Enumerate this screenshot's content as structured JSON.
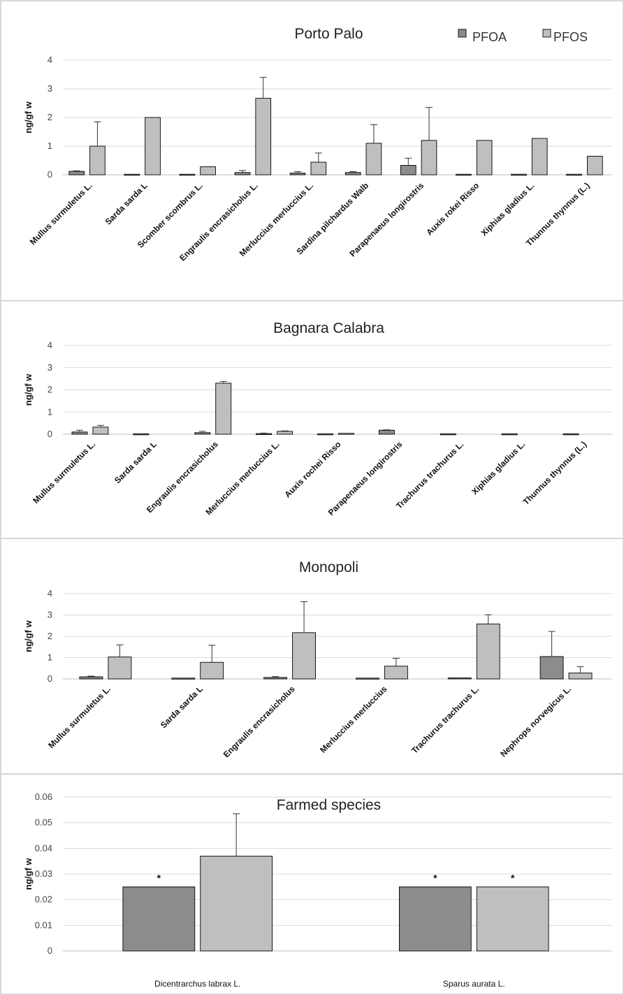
{
  "legend": {
    "pfoa_label": "PFOA",
    "pfos_label": "PFOS"
  },
  "colors": {
    "pfoa": "#8c8c8c",
    "pfos": "#bfbfbf",
    "grid": "#d9d9d9",
    "border": "#bfbfbf",
    "bar_stroke": "#000000"
  },
  "chart_data": [
    {
      "type": "bar",
      "title": "Porto Palo",
      "ylabel": "ng/gf w",
      "ylim": [
        0,
        4
      ],
      "yticks": [
        "0",
        "1",
        "2",
        "3",
        "4"
      ],
      "categories": [
        "Mullus surmuletus L.",
        "Sarda sarda L",
        "Scomber scombrus L.",
        "Engraulis encrasicholus L.",
        "Merluccius merluccius L.",
        "Sardina pilchardus Walb",
        "Parapenaeus longirostris",
        "Auxis rokei Risso",
        "Xiphias gladius L.",
        "Thunnus thynnus (L.)"
      ],
      "series": [
        {
          "name": "PFOA",
          "values": [
            0.12,
            0.02,
            0.02,
            0.08,
            0.06,
            0.08,
            0.33,
            0.02,
            0.02,
            0.02
          ],
          "errors": [
            0.02,
            0,
            0,
            0.07,
            0.05,
            0.03,
            0.25,
            0,
            0,
            0
          ]
        },
        {
          "name": "PFOS",
          "values": [
            1.0,
            2.0,
            0.28,
            2.67,
            0.44,
            1.1,
            1.2,
            1.2,
            1.27,
            0.65
          ],
          "errors": [
            0.85,
            0,
            0,
            0.73,
            0.32,
            0.65,
            1.15,
            0,
            0,
            0
          ]
        }
      ],
      "grid": true
    },
    {
      "type": "bar",
      "title": "Bagnara Calabra",
      "ylabel": "ng/gf w",
      "ylim": [
        0,
        4
      ],
      "yticks": [
        "0",
        "1",
        "2",
        "3",
        "4"
      ],
      "categories": [
        "Mullus surmuletus L.",
        "Sarda sarda L",
        "Engraulis encrasicholus",
        "Merluccius merluccius L.",
        "Auxis rochei Risso",
        "Parapenaeus longirostris",
        "Trachurus trachurus L.",
        "Xiphias gladius L.",
        "Thunnus thynnus (L.)"
      ],
      "series": [
        {
          "name": "PFOA",
          "values": [
            0.1,
            0.02,
            0.07,
            0.03,
            0.02,
            0.18,
            0.02,
            0.02,
            0.02
          ],
          "errors": [
            0.08,
            0,
            0.06,
            0.02,
            0,
            0.02,
            0,
            0,
            0
          ]
        },
        {
          "name": "PFOS",
          "values": [
            0.32,
            0.0,
            2.3,
            0.13,
            0.04,
            0.0,
            0.0,
            0.0,
            0.0
          ],
          "errors": [
            0.08,
            0,
            0.08,
            0.02,
            0,
            0,
            0,
            0,
            0
          ]
        }
      ],
      "grid": true
    },
    {
      "type": "bar",
      "title": "Monopoli",
      "ylabel": "ng/gf w",
      "ylim": [
        0,
        4
      ],
      "yticks": [
        "0",
        "1",
        "2",
        "3",
        "4"
      ],
      "categories": [
        "Mullus surmuletus L.",
        "Sarda sarda L",
        "Engraulis encrasicholus",
        "Merluccius merluccius",
        "Trachurus trachurus L.",
        "Nephrops norvegicus L."
      ],
      "series": [
        {
          "name": "PFOA",
          "values": [
            0.1,
            0.04,
            0.07,
            0.04,
            0.05,
            1.05
          ],
          "errors": [
            0.03,
            0,
            0.04,
            0,
            0,
            1.18
          ]
        },
        {
          "name": "PFOS",
          "values": [
            1.03,
            0.78,
            2.17,
            0.6,
            2.58,
            0.28
          ],
          "errors": [
            0.57,
            0.8,
            1.45,
            0.37,
            0.43,
            0.3
          ]
        }
      ],
      "grid": true
    },
    {
      "type": "bar",
      "title": "Farmed species",
      "ylabel": "ng/gf w",
      "ylim": [
        0,
        0.06
      ],
      "yticks": [
        "0",
        "0.01",
        "0.02",
        "0.03",
        "0.04",
        "0.05",
        "0.06"
      ],
      "categories": [
        "Dicentrarchus labrax L.",
        "Sparus aurata L."
      ],
      "series": [
        {
          "name": "PFOA",
          "values": [
            0.025,
            0.025
          ],
          "errors": [
            0,
            0
          ],
          "marks": [
            "*",
            "*"
          ]
        },
        {
          "name": "PFOS",
          "values": [
            0.037,
            0.025
          ],
          "errors": [
            0.0165,
            0
          ],
          "marks": [
            "",
            "*"
          ]
        }
      ],
      "grid": true
    }
  ]
}
